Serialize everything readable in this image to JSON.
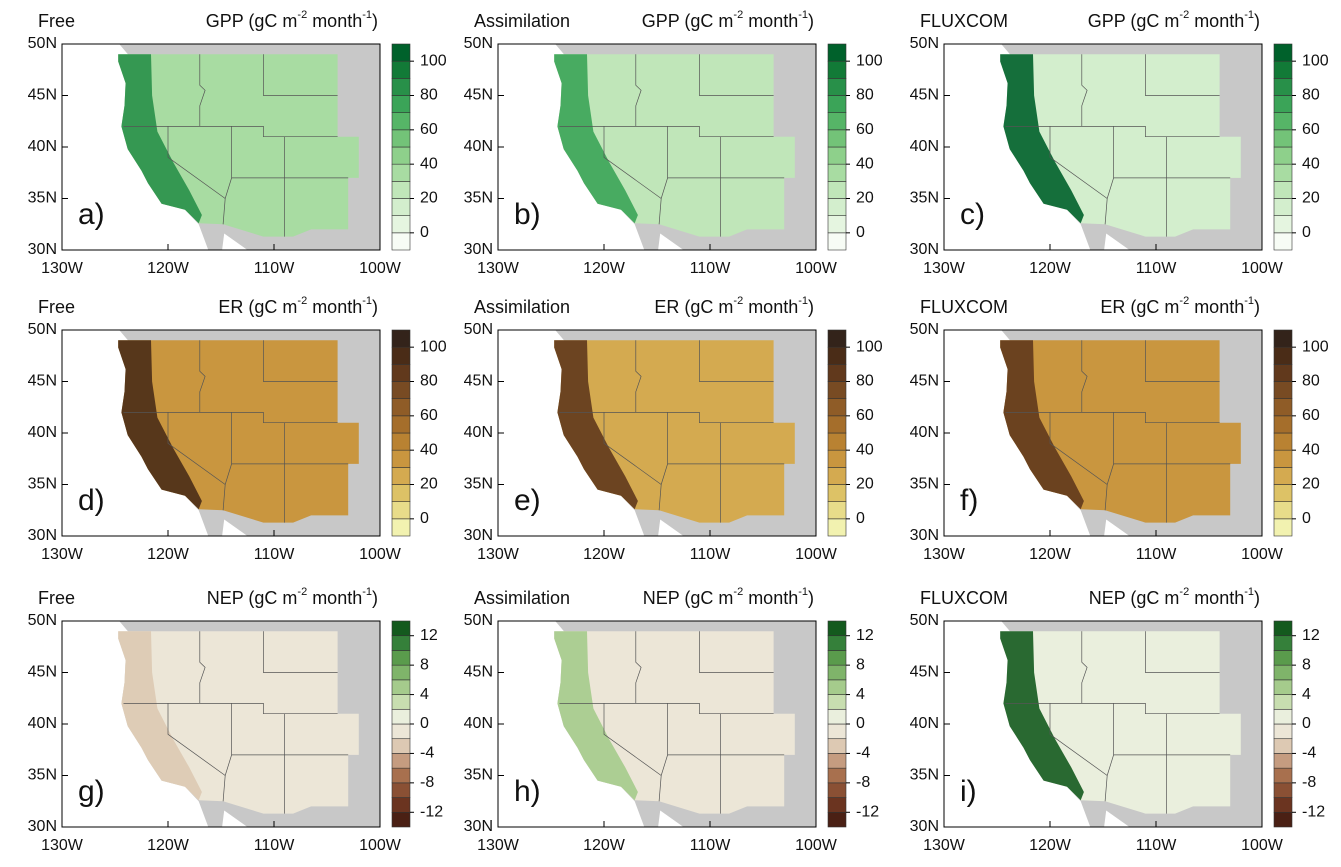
{
  "x_axis": {
    "xlim": [
      -130,
      -100
    ],
    "xticks": [
      {
        "value": -130,
        "label": "130W"
      },
      {
        "value": -120,
        "label": "120W"
      },
      {
        "value": -110,
        "label": "110W"
      },
      {
        "value": -100,
        "label": "100W"
      }
    ]
  },
  "y_axis": {
    "ylim": [
      30,
      50
    ],
    "yticks": [
      {
        "value": 30,
        "label": "30N"
      },
      {
        "value": 35,
        "label": "35N"
      },
      {
        "value": 40,
        "label": "40N"
      },
      {
        "value": 45,
        "label": "45N"
      },
      {
        "value": 50,
        "label": "50N"
      }
    ]
  },
  "rows": [
    {
      "title": {
        "variable": "GPP",
        "unit_start": " (gC m",
        "exp1": "-2",
        "unit_mid": " month",
        "exp2": "-1",
        "unit_end": ")"
      },
      "colorbar": {
        "ticks": [
          0,
          20,
          40,
          60,
          80,
          100
        ],
        "colors": [
          "#f7fcf5",
          "#e5f5e0",
          "#d3eecd",
          "#c0e6b9",
          "#a8dca2",
          "#8ed08b",
          "#73c378",
          "#56b567",
          "#3ba458",
          "#289049",
          "#127a37",
          "#00612b"
        ]
      },
      "panels": [
        {
          "source": "Free",
          "label": "a)",
          "color": "#a8dca2",
          "coast_color": "#289049"
        },
        {
          "source": "Assimilation",
          "label": "b)",
          "color": "#c0e6b9",
          "coast_color": "#3ba458"
        },
        {
          "source": "FLUXCOM",
          "label": "c)",
          "color": "#d3eecd",
          "coast_color": "#00612b"
        }
      ]
    },
    {
      "title": {
        "variable": "ER",
        "unit_start": " (gC m",
        "exp1": "-2",
        "unit_mid": " month",
        "exp2": "-1",
        "unit_end": ")"
      },
      "colorbar": {
        "ticks": [
          0,
          20,
          40,
          60,
          80,
          100
        ],
        "colors": [
          "#f2f2b0",
          "#e8dc8a",
          "#ddc266",
          "#d4aa50",
          "#c9963f",
          "#b98232",
          "#a56e2b",
          "#8f5c27",
          "#784b23",
          "#61391c",
          "#4a2c17",
          "#33231a"
        ]
      },
      "panels": [
        {
          "source": "Free",
          "label": "d)",
          "color": "#c9963f",
          "coast_color": "#4a2c17"
        },
        {
          "source": "Assimilation",
          "label": "e)",
          "color": "#d4aa50",
          "coast_color": "#61391c"
        },
        {
          "source": "FLUXCOM",
          "label": "f)",
          "color": "#c9963f",
          "coast_color": "#61391c"
        }
      ]
    },
    {
      "title": {
        "variable": "NEP",
        "unit_start": " (gC m",
        "exp1": "-2",
        "unit_mid": " month",
        "exp2": "-1",
        "unit_end": ")"
      },
      "colorbar": {
        "ticks": [
          -12,
          -8,
          -4,
          0,
          4,
          8,
          12
        ],
        "colors": [
          "#4a2014",
          "#6b3420",
          "#8a5034",
          "#a8704e",
          "#c59c80",
          "#ddc9b3",
          "#ece6d7",
          "#eaefdd",
          "#c8deb0",
          "#a5cb8c",
          "#7fb46a",
          "#5a9b4c",
          "#35803a",
          "#145a1e"
        ]
      },
      "panels": [
        {
          "source": "Free",
          "label": "g)",
          "color": "#ece6d7",
          "coast_color": "#ddc9b3"
        },
        {
          "source": "Assimilation",
          "label": "h)",
          "color": "#ece6d7",
          "coast_color": "#a5cb8c"
        },
        {
          "source": "FLUXCOM",
          "label": "i)",
          "color": "#eaefdd",
          "coast_color": "#145a1e"
        }
      ]
    }
  ]
}
